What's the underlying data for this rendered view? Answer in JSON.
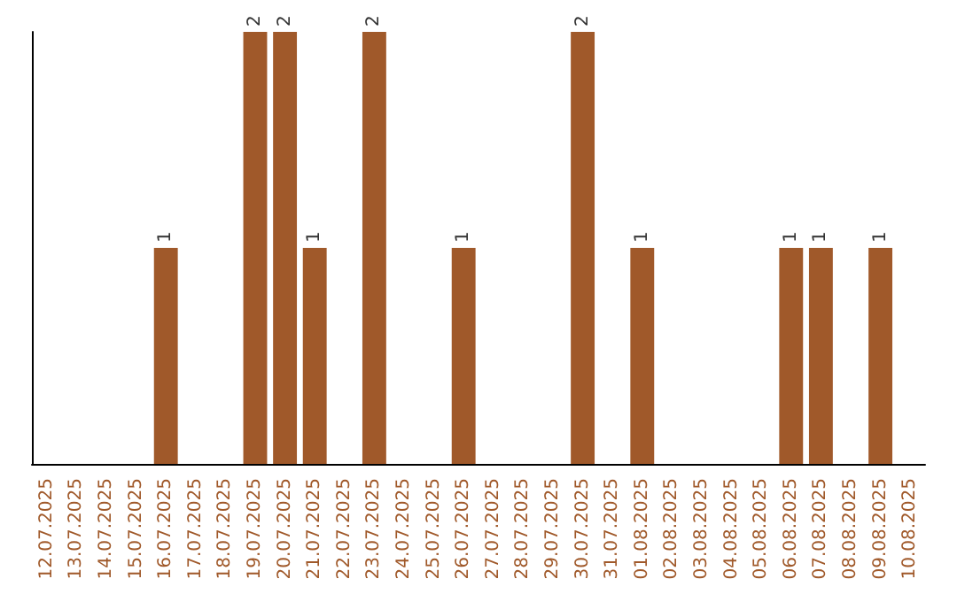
{
  "chart_data": {
    "type": "bar",
    "categories": [
      "12.07.2025",
      "13.07.2025",
      "14.07.2025",
      "15.07.2025",
      "16.07.2025",
      "17.07.2025",
      "18.07.2025",
      "19.07.2025",
      "20.07.2025",
      "21.07.2025",
      "22.07.2025",
      "23.07.2025",
      "24.07.2025",
      "25.07.2025",
      "26.07.2025",
      "27.07.2025",
      "28.07.2025",
      "29.07.2025",
      "30.07.2025",
      "31.07.2025",
      "01.08.2025",
      "02.08.2025",
      "03.08.2025",
      "04.08.2025",
      "05.08.2025",
      "06.08.2025",
      "07.08.2025",
      "08.08.2025",
      "09.08.2025",
      "10.08.2025"
    ],
    "values": [
      null,
      null,
      null,
      null,
      1,
      null,
      null,
      2,
      2,
      1,
      null,
      2,
      null,
      null,
      1,
      null,
      null,
      null,
      2,
      null,
      1,
      null,
      null,
      null,
      null,
      1,
      1,
      null,
      1,
      null
    ],
    "color": "#a0592a",
    "data_labels": true
  }
}
